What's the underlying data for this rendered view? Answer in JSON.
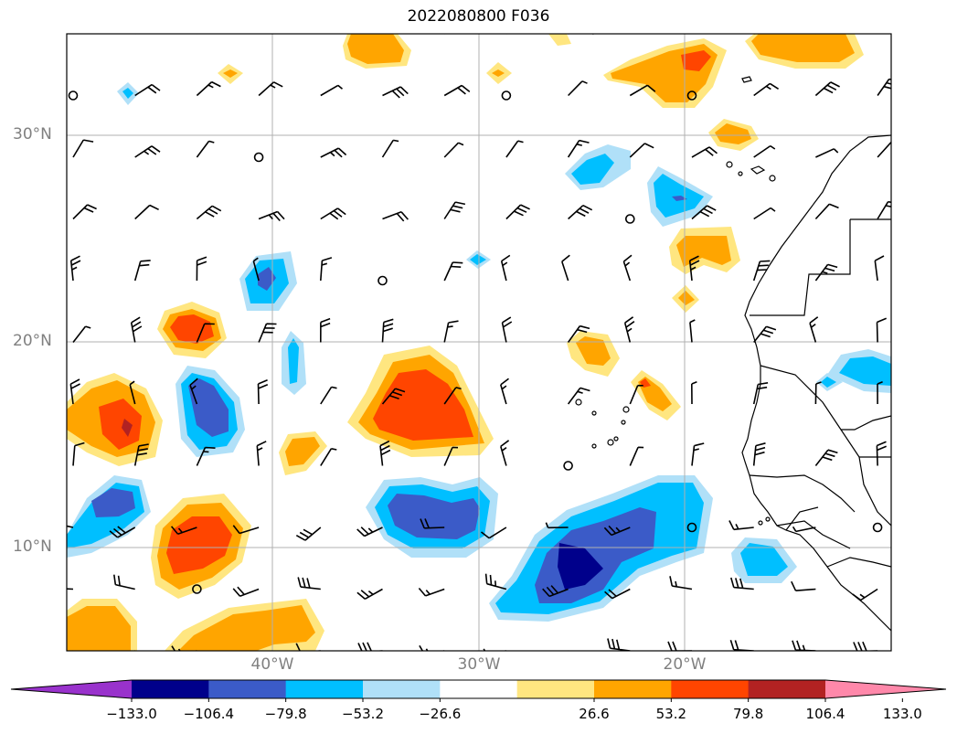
{
  "title": "2022080800 F036",
  "lat_labels": [
    "30°N",
    "20°N",
    "10°N"
  ],
  "lon_labels": [
    "40°W",
    "30°W",
    "20°W"
  ],
  "colorbar": {
    "labels": [
      "−133.0",
      "−106.4",
      "−79.8",
      "−53.2",
      "−26.6",
      "26.6",
      "53.2",
      "79.8",
      "106.4",
      "133.0"
    ],
    "colors": [
      "#9932CC",
      "#00008B",
      "#3B5BC8",
      "#00BFFF",
      "#B0E0F8",
      "#FFFFFF",
      "#FFE680",
      "#FFA500",
      "#FF4500",
      "#B22222",
      "#FF88AA"
    ]
  },
  "colors": {
    "positive_light": "#FFE680",
    "positive_mid": "#FFA500",
    "positive_high": "#FF4500",
    "positive_max": "#B22222",
    "negative_light": "#B0E0F8",
    "negative_mid": "#00BFFF",
    "negative_high": "#3B5BC8",
    "negative_max": "#00008B",
    "grid": "#B0B0B0",
    "axis_labels": "#808080"
  }
}
